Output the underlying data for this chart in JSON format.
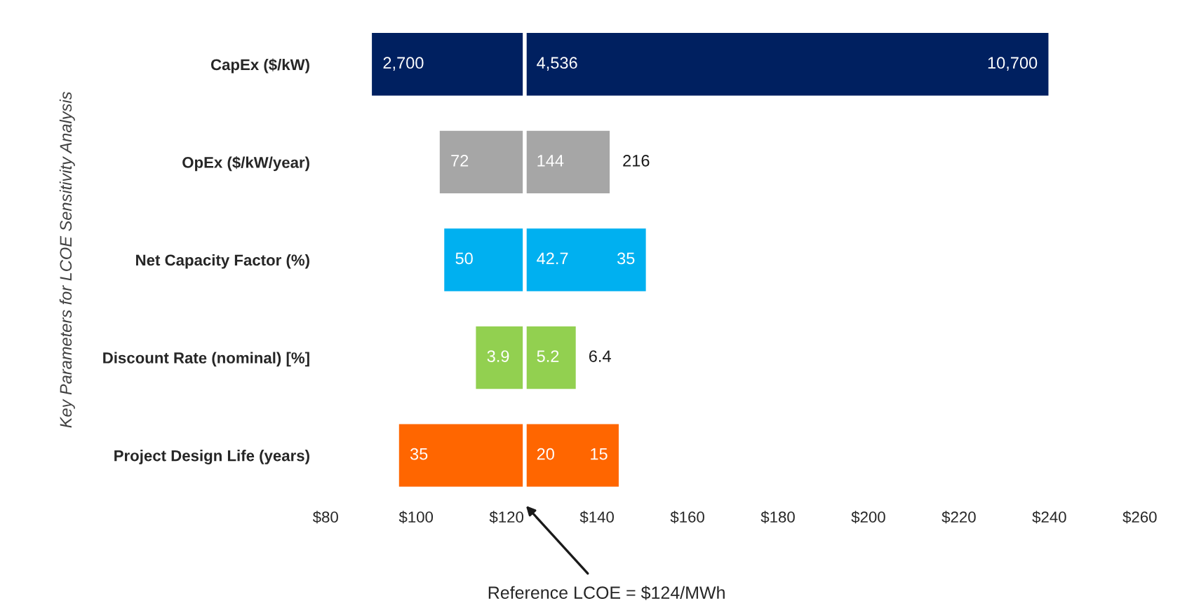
{
  "chart_data": {
    "type": "bar",
    "orientation": "horizontal",
    "ylabel": "Key Parameters for LCOE Sensitivity Analysis",
    "categories": [
      "CapEx ($/kW)",
      "OpEx ($/kW/year)",
      "Net Capacity Factor (%)",
      "Discount Rate (nominal) [%]",
      "Project Design Life (years)"
    ],
    "series": [
      {
        "base": [
          90,
          105,
          106,
          113,
          96
        ],
        "values": [
          34,
          19,
          18,
          11,
          28
        ],
        "colors": [
          "#002060",
          "#a6a6a6",
          "#00b0f0",
          "#92d050",
          "#ff6600"
        ]
      },
      {
        "base": [
          124,
          124,
          124,
          124,
          124
        ],
        "values": [
          116,
          19,
          27,
          11.5,
          21
        ],
        "colors": [
          "#002060",
          "#a6a6a6",
          "#00b0f0",
          "#92d050",
          "#ff6600"
        ]
      }
    ],
    "xlim": [
      80,
      260
    ],
    "xticks": [
      {
        "value": 80,
        "label": "$80"
      },
      {
        "value": 100,
        "label": "$100"
      },
      {
        "value": 120,
        "label": "$120"
      },
      {
        "value": 140,
        "label": "$140"
      },
      {
        "value": 160,
        "label": "$160"
      },
      {
        "value": 180,
        "label": "$180"
      },
      {
        "value": 200,
        "label": "$200"
      },
      {
        "value": 220,
        "label": "$220"
      },
      {
        "value": 240,
        "label": "$240"
      },
      {
        "value": 260,
        "label": "$260"
      }
    ],
    "ref_lines": [
      {
        "axis": "x",
        "value": 124,
        "label": "Reference LCOE = $124/MWh",
        "color": "#ffffff"
      }
    ],
    "annotations": [
      {
        "text": "2,700",
        "x": 90,
        "y": "CapEx ($/kW)"
      },
      {
        "text": "4,536",
        "x": 124,
        "y": "CapEx ($/kW)"
      },
      {
        "text": "10,700",
        "x": 240,
        "y": "CapEx ($/kW)"
      },
      {
        "text": "72",
        "x": 105,
        "y": "OpEx ($/kW/year)"
      },
      {
        "text": "144",
        "x": 124,
        "y": "OpEx ($/kW/year)"
      },
      {
        "text": "216",
        "x": 143,
        "y": "OpEx ($/kW/year)"
      },
      {
        "text": "50",
        "x": 106,
        "y": "Net Capacity Factor (%)"
      },
      {
        "text": "42.7",
        "x": 124,
        "y": "Net Capacity Factor (%)"
      },
      {
        "text": "35",
        "x": 151,
        "y": "Net Capacity Factor (%)"
      },
      {
        "text": "3.9",
        "x": 113,
        "y": "Discount Rate (nominal) [%]"
      },
      {
        "text": "5.2",
        "x": 124,
        "y": "Discount Rate (nominal) [%]"
      },
      {
        "text": "6.4",
        "x": 135.5,
        "y": "Discount Rate (nominal) [%]"
      },
      {
        "text": "35",
        "x": 96,
        "y": "Project Design Life (years)"
      },
      {
        "text": "20",
        "x": 124,
        "y": "Project Design Life (years)"
      },
      {
        "text": "15",
        "x": 145,
        "y": "Project Design Life (years)"
      }
    ]
  }
}
